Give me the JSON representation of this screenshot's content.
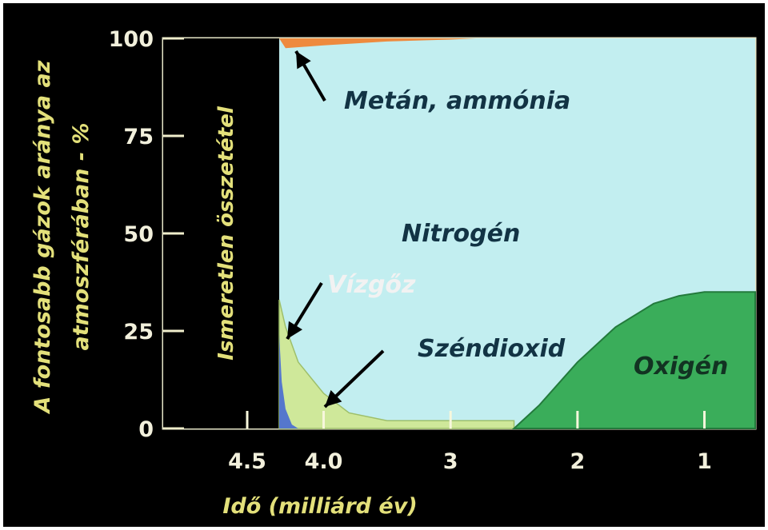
{
  "chart_data": {
    "type": "area",
    "title": "",
    "xlabel": "Idő (milliárd év)",
    "ylabel_line1": "A fontosabb gázok aránya az",
    "ylabel_line2": "atmoszférában - %",
    "x_ticks": [
      "4.5",
      "4.0",
      "3",
      "2",
      "1"
    ],
    "y_ticks": [
      "0",
      "25",
      "50",
      "75",
      "100"
    ],
    "ylim": [
      0,
      100
    ],
    "unknown_label": "Ismeretlen összetétel",
    "series": [
      {
        "name": "Metán, ammónia",
        "color": "#ee8a3e",
        "x": [
          4.35,
          4.3,
          4.0,
          3.5,
          3.0,
          2.8
        ],
        "values": [
          0,
          2.5,
          1.8,
          0.8,
          0.3,
          0
        ]
      },
      {
        "name": "Vízgőz",
        "color": "#5577cc",
        "x": [
          4.35,
          4.33,
          4.3,
          4.25,
          4.2
        ],
        "values": [
          24,
          12,
          5,
          1,
          0
        ]
      },
      {
        "name": "Széndioxid",
        "color": "#cfe89a",
        "x": [
          4.35,
          4.3,
          4.2,
          4.0,
          3.8,
          3.5,
          3.0,
          2.5
        ],
        "values": [
          33,
          26,
          17,
          9,
          4,
          2,
          2,
          2
        ]
      },
      {
        "name": "Oxigén",
        "color": "#3aad5a",
        "x": [
          2.5,
          2.3,
          2.0,
          1.7,
          1.4,
          1.2,
          1.0,
          0.9
        ],
        "values": [
          0,
          6,
          17,
          26,
          32,
          34,
          35,
          35
        ]
      },
      {
        "name": "Nitrogén",
        "color": "#c2eef0",
        "note": "remainder of atmosphere"
      }
    ]
  }
}
